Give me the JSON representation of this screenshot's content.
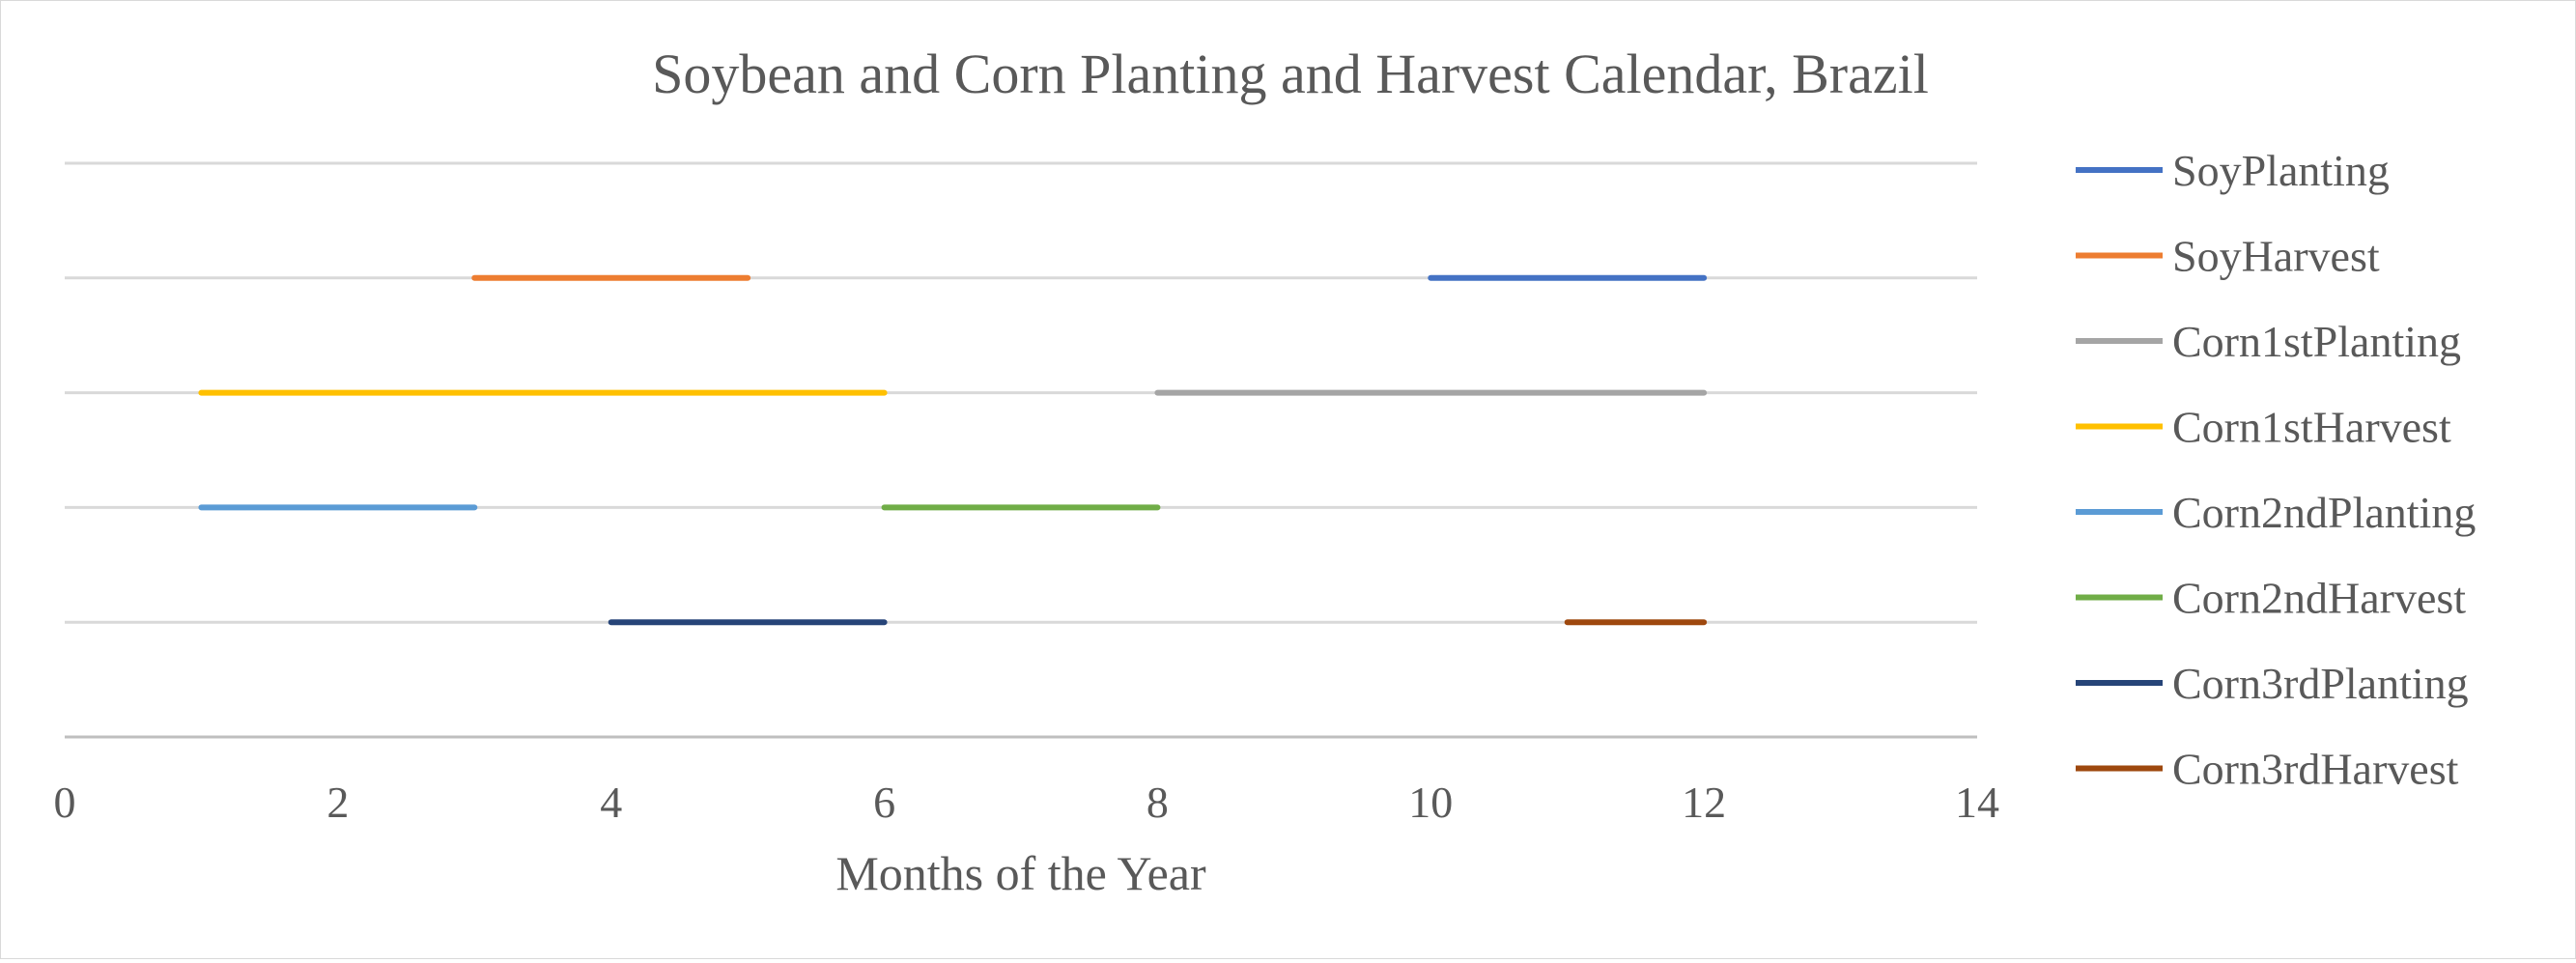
{
  "chart_data": {
    "type": "line",
    "title": "Soybean and Corn Planting and Harvest Calendar, Brazil",
    "xlabel": "Months of the Year",
    "ylabel": "",
    "xlim": [
      0,
      14
    ],
    "ylim": [
      0,
      5
    ],
    "x_ticks": [
      0,
      2,
      4,
      6,
      8,
      10,
      12,
      14
    ],
    "y_ticks_shown": false,
    "grid": "horizontal",
    "legend_position": "right",
    "series": [
      {
        "name": "SoyPlanting",
        "color": "#4472C4",
        "points": [
          {
            "x": 10,
            "y": 4
          },
          {
            "x": 12,
            "y": 4
          }
        ]
      },
      {
        "name": "SoyHarvest",
        "color": "#ED7D31",
        "points": [
          {
            "x": 3,
            "y": 4
          },
          {
            "x": 5,
            "y": 4
          }
        ]
      },
      {
        "name": "Corn1stPlanting",
        "color": "#A5A5A5",
        "points": [
          {
            "x": 8,
            "y": 3
          },
          {
            "x": 12,
            "y": 3
          }
        ]
      },
      {
        "name": "Corn1stHarvest",
        "color": "#FFC000",
        "points": [
          {
            "x": 1,
            "y": 3
          },
          {
            "x": 6,
            "y": 3
          }
        ]
      },
      {
        "name": "Corn2ndPlanting",
        "color": "#5B9BD5",
        "points": [
          {
            "x": 1,
            "y": 2
          },
          {
            "x": 3,
            "y": 2
          }
        ]
      },
      {
        "name": "Corn2ndHarvest",
        "color": "#70AD47",
        "points": [
          {
            "x": 6,
            "y": 2
          },
          {
            "x": 8,
            "y": 2
          }
        ]
      },
      {
        "name": "Corn3rdPlanting",
        "color": "#264478",
        "points": [
          {
            "x": 4,
            "y": 1
          },
          {
            "x": 6,
            "y": 1
          }
        ]
      },
      {
        "name": "Corn3rdHarvest",
        "color": "#9E480E",
        "points": [
          {
            "x": 11,
            "y": 1
          },
          {
            "x": 12,
            "y": 1
          }
        ]
      }
    ]
  }
}
